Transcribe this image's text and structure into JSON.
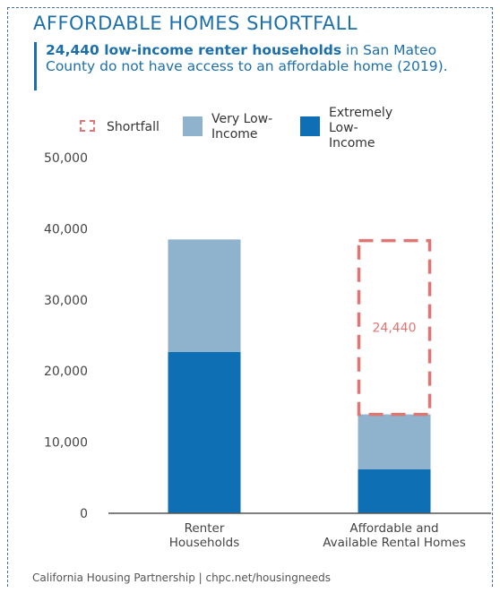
{
  "header": {
    "title": "AFFORDABLE HOMES SHORTFALL",
    "subtitle_bold": "24,440 low-income renter households",
    "subtitle_rest": " in San Mateo County do not have access to an affordable home (2019)."
  },
  "legend": {
    "shortfall": "Shortfall",
    "very_low": [
      "Very Low-",
      "Income"
    ],
    "extremely_low": [
      "Extremely",
      "Low-",
      "Income"
    ]
  },
  "colors": {
    "extremely_low": "#0e6fb4",
    "very_low": "#8fb3cc",
    "shortfall": "#e07673",
    "axis": "#555555"
  },
  "chart_data": {
    "type": "bar",
    "stacked": true,
    "categories": [
      [
        "Renter",
        "Households"
      ],
      [
        "Affordable and",
        "Available Rental Homes"
      ]
    ],
    "series": [
      {
        "name": "Extremely Low-Income",
        "values": [
          22700,
          6200
        ]
      },
      {
        "name": "Very Low-Income",
        "values": [
          15800,
          7700
        ]
      }
    ],
    "shortfall": {
      "category_index": 1,
      "value": 24440,
      "label": "24,440"
    },
    "ylim": [
      0,
      50000
    ],
    "yticks": [
      "0",
      "10,000",
      "20,000",
      "30,000",
      "40,000",
      "50,000"
    ],
    "grid": false
  },
  "footer": "California Housing Partnership | chpc.net/housingneeds"
}
